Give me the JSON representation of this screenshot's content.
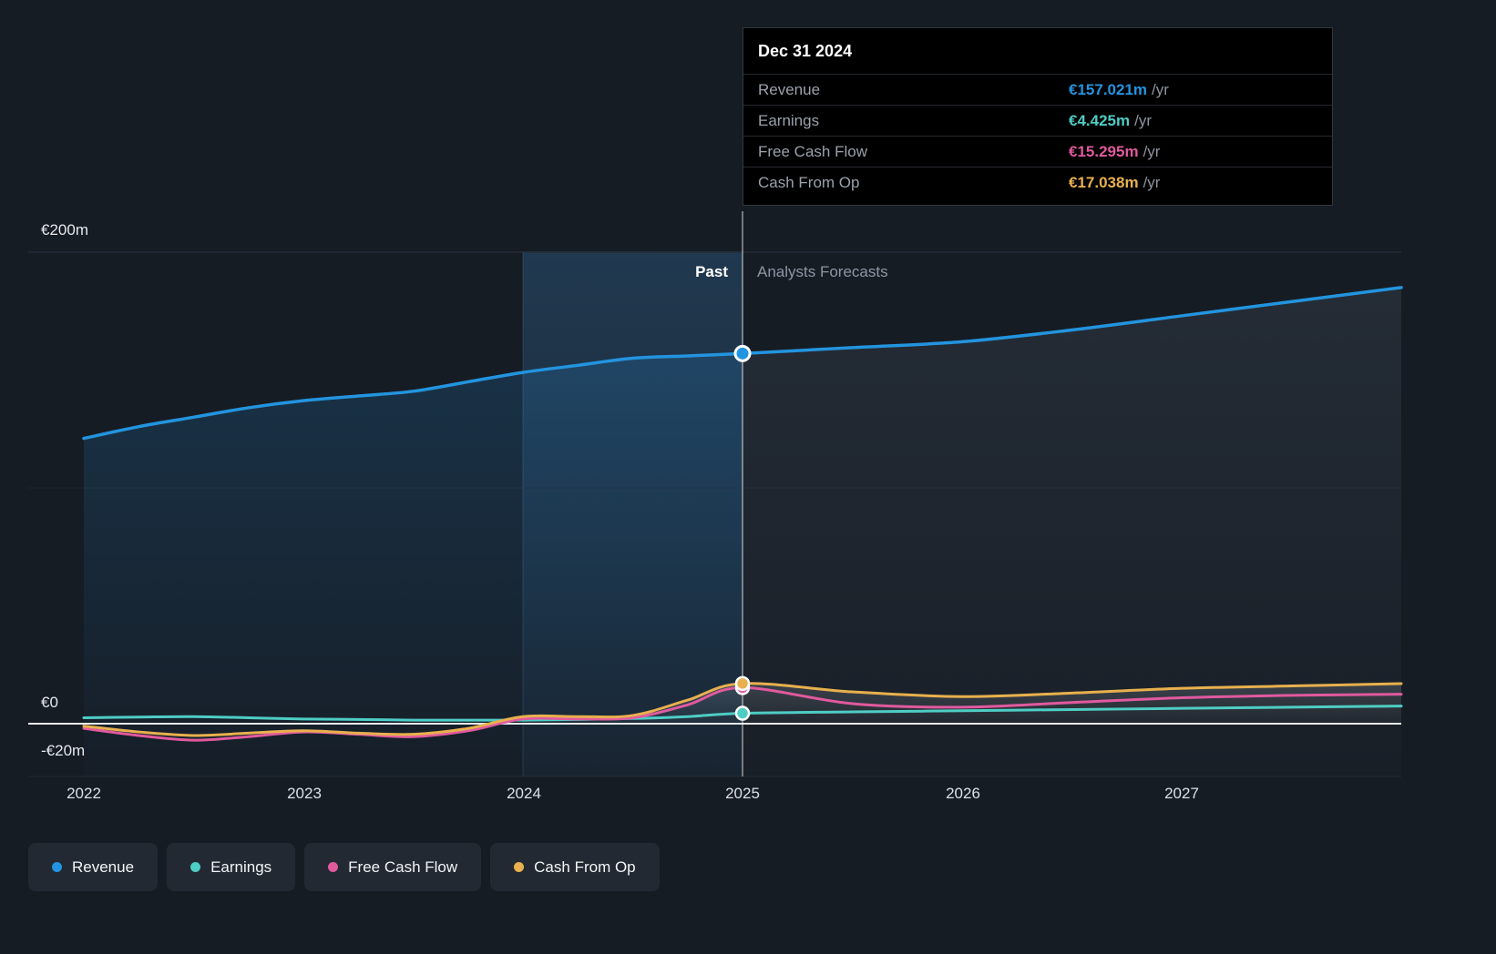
{
  "colors": {
    "background": "#161c24",
    "revenue": "#2394df",
    "earnings": "#4ecdc4",
    "free_cash_flow": "#e05a9e",
    "cash_from_op": "#e8b04e",
    "zero_line": "#e8eaed",
    "grid": "#232b36"
  },
  "tooltip": {
    "date": "Dec 31 2024",
    "rows": [
      {
        "label": "Revenue",
        "value": "€157.021m",
        "unit": "/yr",
        "color": "#2394df"
      },
      {
        "label": "Earnings",
        "value": "€4.425m",
        "unit": "/yr",
        "color": "#4ecdc4"
      },
      {
        "label": "Free Cash Flow",
        "value": "€15.295m",
        "unit": "/yr",
        "color": "#e05a9e"
      },
      {
        "label": "Cash From Op",
        "value": "€17.038m",
        "unit": "/yr",
        "color": "#e8b04e"
      }
    ]
  },
  "chart": {
    "past_label": "Past",
    "forecast_label": "Analysts Forecasts",
    "y_ticks": [
      "€200m",
      "€0",
      "-€20m"
    ],
    "x_ticks": [
      "2022",
      "2023",
      "2024",
      "2025",
      "2026",
      "2027"
    ]
  },
  "legend": [
    {
      "label": "Revenue",
      "color": "#2394df"
    },
    {
      "label": "Earnings",
      "color": "#4ecdc4"
    },
    {
      "label": "Free Cash Flow",
      "color": "#e05a9e"
    },
    {
      "label": "Cash From Op",
      "color": "#e8b04e"
    }
  ],
  "chart_data": {
    "type": "line",
    "title": "Revenue, Earnings, Free Cash Flow and Cash From Op history and forecasts (€m)",
    "units": "€m",
    "x_domain": [
      2022,
      2028
    ],
    "ylim": [
      -20,
      200
    ],
    "y_tick_values": [
      200,
      0,
      -20
    ],
    "divider_x": 2025,
    "marker_x": 2025,
    "highlight_band": [
      2024,
      2025
    ],
    "x": [
      2022,
      2022.25,
      2022.5,
      2022.75,
      2023,
      2023.25,
      2023.5,
      2023.75,
      2024,
      2024.25,
      2024.5,
      2024.75,
      2025,
      2025.5,
      2026,
      2026.5,
      2027,
      2027.5,
      2028
    ],
    "series": [
      {
        "name": "Revenue",
        "color": "#2394df",
        "width": 3.5,
        "values": [
          121,
          126,
          130,
          134,
          137,
          139,
          141,
          145,
          149,
          152,
          155,
          156,
          157.021,
          159.5,
          162,
          167,
          173,
          179,
          185
        ]
      },
      {
        "name": "Earnings",
        "color": "#4ecdc4",
        "width": 3,
        "values": [
          2.5,
          2.8,
          3,
          2.5,
          2,
          1.8,
          1.5,
          1.5,
          1.5,
          1.8,
          2.2,
          3,
          4.425,
          5,
          5.5,
          6,
          6.5,
          7,
          7.5
        ]
      },
      {
        "name": "Free Cash Flow",
        "color": "#e05a9e",
        "width": 3,
        "values": [
          -2,
          -5,
          -7,
          -5.5,
          -3.5,
          -4.5,
          -5.5,
          -3,
          2,
          2,
          2.5,
          8,
          15.295,
          8.5,
          7,
          9,
          11,
          12,
          12.5
        ]
      },
      {
        "name": "Cash From Op",
        "color": "#e8b04e",
        "width": 3,
        "values": [
          -1,
          -3.5,
          -5,
          -4,
          -3,
          -4,
          -4.5,
          -2,
          3,
          3,
          3.5,
          10,
          17.038,
          13.5,
          11.5,
          13,
          15,
          16,
          17
        ]
      }
    ],
    "legend_position": "bottom-left",
    "grid": "horizontal-only"
  }
}
